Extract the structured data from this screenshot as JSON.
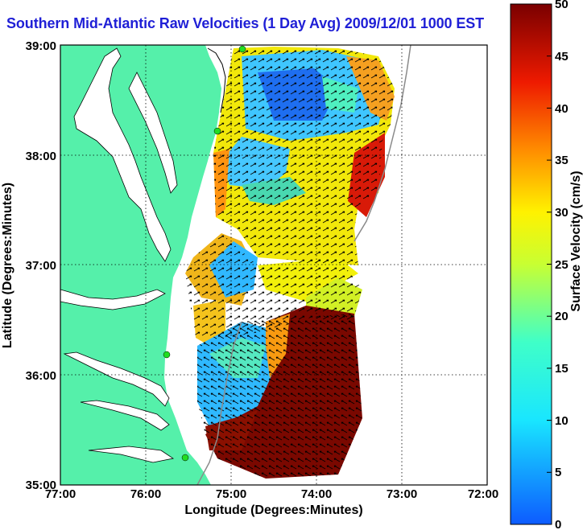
{
  "title": "Southern Mid-Atlantic Raw Velocities (1 Day Avg) 2009/12/01 1000 EST",
  "axes": {
    "xlabel": "Longitude (Degrees:Minutes)",
    "ylabel": "Latitude (Degrees:Minutes)",
    "xticks": [
      "77:00",
      "76:00",
      "75:00",
      "74:00",
      "73:00",
      "72:00"
    ],
    "yticks": [
      "39:00",
      "38:00",
      "37:00",
      "36:00",
      "35:00"
    ]
  },
  "colorbar": {
    "label": "Surface Velocity (cm/s)",
    "ticks": [
      "0",
      "5",
      "10",
      "15",
      "20",
      "25",
      "30",
      "35",
      "40",
      "45",
      "50"
    ],
    "min": 0,
    "max": 50
  },
  "colors": {
    "land": "#55f0aa",
    "title": "#1f1fd6",
    "station": "#22dd22"
  }
}
